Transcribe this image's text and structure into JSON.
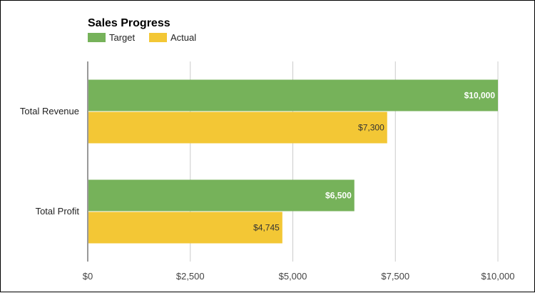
{
  "chart_data": {
    "type": "bar",
    "orientation": "horizontal",
    "title": "Sales Progress",
    "categories": [
      "Total Revenue",
      "Total Profit"
    ],
    "series": [
      {
        "name": "Target",
        "values": [
          10000,
          6500
        ],
        "labels": [
          "$10,000",
          "$6,500"
        ],
        "color": "#76b25a"
      },
      {
        "name": "Actual",
        "values": [
          7300,
          4745
        ],
        "labels": [
          "$7,300",
          "$4,745"
        ],
        "color": "#f3c735"
      }
    ],
    "xlim": [
      0,
      10000
    ],
    "ticks": [
      0,
      2500,
      5000,
      7500,
      10000
    ],
    "tick_labels": [
      "$0",
      "$2,500",
      "$5,000",
      "$7,500",
      "$10,000"
    ],
    "grid": true,
    "legend_position": "top-left"
  }
}
